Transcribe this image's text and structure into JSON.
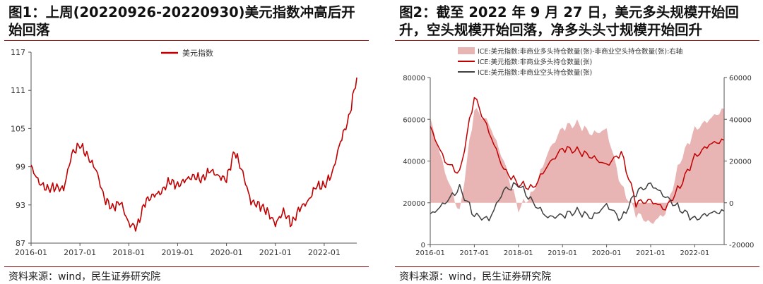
{
  "left": {
    "title": "图1：上周(20220926-20220930)美元指数冲高后开始回落",
    "source": "资料来源：wind，民生证券研究院",
    "chart_data": {
      "type": "line",
      "series": [
        {
          "name": "美元指数",
          "color": "#c00000",
          "x": [
            "2016-01",
            "2016-03",
            "2016-05",
            "2016-07",
            "2016-09",
            "2016-11",
            "2017-01",
            "2017-03",
            "2017-05",
            "2017-07",
            "2017-09",
            "2017-11",
            "2018-01",
            "2018-03",
            "2018-05",
            "2018-07",
            "2018-09",
            "2018-11",
            "2019-01",
            "2019-03",
            "2019-05",
            "2019-07",
            "2019-09",
            "2019-11",
            "2020-01",
            "2020-03",
            "2020-05",
            "2020-07",
            "2020-09",
            "2020-11",
            "2021-01",
            "2021-03",
            "2021-05",
            "2021-07",
            "2021-09",
            "2021-11",
            "2022-01",
            "2022-03",
            "2022-05",
            "2022-07",
            "2022-09"
          ],
          "values": [
            99.0,
            96.5,
            95.5,
            95.8,
            95.5,
            101.0,
            102.5,
            100.5,
            98.5,
            94.0,
            92.5,
            93.5,
            90.0,
            89.5,
            93.5,
            94.5,
            95.0,
            96.8,
            96.0,
            97.0,
            97.5,
            97.0,
            98.5,
            97.5,
            97.0,
            101.5,
            98.0,
            93.5,
            93.0,
            92.0,
            90.0,
            92.0,
            90.0,
            92.5,
            93.5,
            96.0,
            96.0,
            98.0,
            103.0,
            106.5,
            113.0
          ]
        }
      ],
      "legend": [
        "美元指数"
      ],
      "ylim": [
        87,
        117
      ],
      "yticks": [
        "87",
        "93",
        "99",
        "105",
        "111",
        "117"
      ],
      "xticks": [
        "2016-01",
        "2017-01",
        "2018-01",
        "2019-01",
        "2020-01",
        "2021-01",
        "2022-01"
      ],
      "xrange": [
        "2016-01",
        "2022-09"
      ],
      "legend_position": "top-center",
      "grid": false
    }
  },
  "right": {
    "title": "图2：截至 2022 年 9 月 27 日，美元多头规模开始回升，空头规模开始回落，净多头头寸规模开始回升",
    "source": "资料来源：wind，民生证券研究院",
    "chart_data": {
      "type": "line",
      "x": [
        "2016-01",
        "2016-05",
        "2016-09",
        "2017-01",
        "2017-05",
        "2017-09",
        "2018-01",
        "2018-05",
        "2018-09",
        "2019-01",
        "2019-05",
        "2019-09",
        "2020-01",
        "2020-05",
        "2020-09",
        "2021-01",
        "2021-05",
        "2021-09",
        "2022-01",
        "2022-05",
        "2022-09"
      ],
      "series": [
        {
          "name": "ICE:美元指数:非商业多头持仓数量(张)-非商业空头持仓数量(张):右轴",
          "type": "area",
          "axis": "right",
          "color": "#e8b4b4",
          "values": [
            40000,
            15000,
            -5000,
            45000,
            38000,
            20000,
            -3000,
            5000,
            24000,
            36000,
            38000,
            33000,
            35000,
            8000,
            -5000,
            -10000,
            -5000,
            20000,
            35000,
            40000,
            45000
          ]
        },
        {
          "name": "ICE:美元指数:非商业多头持仓数量(张)",
          "type": "line",
          "axis": "left",
          "color": "#c00000",
          "values": [
            56000,
            40000,
            34000,
            71000,
            54000,
            36000,
            29000,
            27000,
            38000,
            46000,
            45000,
            42000,
            38000,
            44000,
            20000,
            21000,
            17000,
            28000,
            42000,
            48000,
            50000
          ]
        },
        {
          "name": "ICE:美元指数:非商业空头持仓数量(张)",
          "type": "line",
          "axis": "left",
          "color": "#404040",
          "values": [
            14000,
            20000,
            27000,
            14000,
            12000,
            26000,
            29000,
            20000,
            13000,
            14000,
            16000,
            13000,
            19000,
            12000,
            25000,
            29000,
            23000,
            17000,
            12000,
            15000,
            16000
          ]
        }
      ],
      "legend": [
        "ICE:美元指数:非商业多头持仓数量(张)-非商业空头持仓数量(张):右轴",
        "ICE:美元指数:非商业多头持仓数量(张)",
        "ICE:美元指数:非商业空头持仓数量(张)"
      ],
      "ylim_left": [
        0,
        80000
      ],
      "ylim_right": [
        -20000,
        60000
      ],
      "yticks_left": [
        "0",
        "20000",
        "40000",
        "60000",
        "80000"
      ],
      "yticks_right": [
        "-20000",
        "0",
        "20000",
        "40000",
        "60000"
      ],
      "xticks": [
        "2016-01",
        "2017-01",
        "2018-01",
        "2019-01",
        "2020-01",
        "2021-01",
        "2022-01"
      ],
      "xrange": [
        "2016-01",
        "2022-09"
      ],
      "legend_position": "top-left",
      "grid": false
    }
  }
}
